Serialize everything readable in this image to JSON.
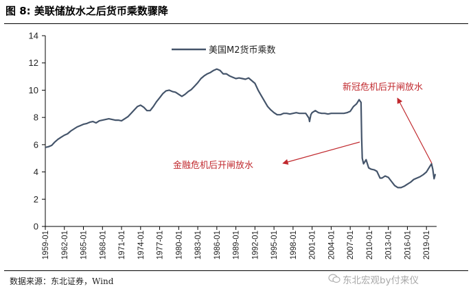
{
  "figure": {
    "title": "图  8:  美联储放水之后货币乘数骤降",
    "source": "数据来源：东北证券，Wind",
    "watermark": "东北宏观by付来仪"
  },
  "chart_data": {
    "type": "line",
    "ylim": [
      0,
      14
    ],
    "yticks": [
      0,
      2,
      4,
      6,
      8,
      10,
      12,
      14
    ],
    "xlim": [
      1959.0,
      2020.6
    ],
    "xtick_labels": [
      "1959-01",
      "1962-01",
      "1965-01",
      "1968-01",
      "1971-01",
      "1974-01",
      "1977-01",
      "1980-01",
      "1983-01",
      "1986-01",
      "1989-01",
      "1992-01",
      "1995-01",
      "1998-01",
      "2001-01",
      "2004-01",
      "2007-01",
      "2010-01",
      "2013-01",
      "2016-01",
      "2019-01"
    ],
    "grid": false,
    "legend_position": "top-center",
    "series": [
      {
        "name": "美国M2货币乘数",
        "color": "#44546a",
        "points": [
          [
            1959.0,
            5.8
          ],
          [
            1959.5,
            5.85
          ],
          [
            1960.0,
            5.95
          ],
          [
            1960.5,
            6.2
          ],
          [
            1961.0,
            6.4
          ],
          [
            1961.5,
            6.55
          ],
          [
            1962.0,
            6.7
          ],
          [
            1962.5,
            6.8
          ],
          [
            1963.0,
            7.0
          ],
          [
            1963.5,
            7.15
          ],
          [
            1964.0,
            7.3
          ],
          [
            1964.5,
            7.4
          ],
          [
            1965.0,
            7.5
          ],
          [
            1965.5,
            7.55
          ],
          [
            1966.0,
            7.65
          ],
          [
            1966.5,
            7.7
          ],
          [
            1967.0,
            7.6
          ],
          [
            1967.5,
            7.75
          ],
          [
            1968.0,
            7.8
          ],
          [
            1968.5,
            7.85
          ],
          [
            1969.0,
            7.9
          ],
          [
            1969.5,
            7.85
          ],
          [
            1970.0,
            7.8
          ],
          [
            1970.5,
            7.8
          ],
          [
            1971.0,
            7.75
          ],
          [
            1971.5,
            7.9
          ],
          [
            1972.0,
            8.05
          ],
          [
            1972.5,
            8.3
          ],
          [
            1973.0,
            8.55
          ],
          [
            1973.5,
            8.8
          ],
          [
            1974.0,
            8.9
          ],
          [
            1974.5,
            8.75
          ],
          [
            1975.0,
            8.5
          ],
          [
            1975.5,
            8.5
          ],
          [
            1976.0,
            8.8
          ],
          [
            1976.5,
            9.15
          ],
          [
            1977.0,
            9.45
          ],
          [
            1977.5,
            9.75
          ],
          [
            1978.0,
            9.95
          ],
          [
            1978.5,
            10.0
          ],
          [
            1979.0,
            9.9
          ],
          [
            1979.5,
            9.85
          ],
          [
            1980.0,
            9.7
          ],
          [
            1980.5,
            9.55
          ],
          [
            1981.0,
            9.7
          ],
          [
            1981.5,
            9.9
          ],
          [
            1982.0,
            10.05
          ],
          [
            1982.5,
            10.3
          ],
          [
            1983.0,
            10.55
          ],
          [
            1983.5,
            10.85
          ],
          [
            1984.0,
            11.05
          ],
          [
            1984.5,
            11.2
          ],
          [
            1985.0,
            11.3
          ],
          [
            1985.5,
            11.45
          ],
          [
            1986.0,
            11.55
          ],
          [
            1986.5,
            11.45
          ],
          [
            1987.0,
            11.2
          ],
          [
            1987.5,
            11.2
          ],
          [
            1988.0,
            11.05
          ],
          [
            1988.5,
            10.95
          ],
          [
            1989.0,
            10.85
          ],
          [
            1989.5,
            10.9
          ],
          [
            1990.0,
            10.85
          ],
          [
            1990.5,
            10.8
          ],
          [
            1991.0,
            10.9
          ],
          [
            1991.5,
            10.7
          ],
          [
            1992.0,
            10.5
          ],
          [
            1992.5,
            10.0
          ],
          [
            1993.0,
            9.6
          ],
          [
            1993.5,
            9.2
          ],
          [
            1994.0,
            8.8
          ],
          [
            1994.5,
            8.55
          ],
          [
            1995.0,
            8.35
          ],
          [
            1995.5,
            8.2
          ],
          [
            1996.0,
            8.2
          ],
          [
            1996.5,
            8.3
          ],
          [
            1997.0,
            8.3
          ],
          [
            1997.5,
            8.25
          ],
          [
            1998.0,
            8.3
          ],
          [
            1998.5,
            8.35
          ],
          [
            1999.0,
            8.3
          ],
          [
            1999.5,
            8.3
          ],
          [
            2000.0,
            8.3
          ],
          [
            2000.5,
            7.95
          ],
          [
            2000.6,
            7.7
          ],
          [
            2000.8,
            8.2
          ],
          [
            2001.0,
            8.35
          ],
          [
            2001.5,
            8.5
          ],
          [
            2002.0,
            8.35
          ],
          [
            2002.5,
            8.3
          ],
          [
            2003.0,
            8.3
          ],
          [
            2003.5,
            8.25
          ],
          [
            2004.0,
            8.3
          ],
          [
            2004.5,
            8.3
          ],
          [
            2005.0,
            8.3
          ],
          [
            2005.5,
            8.3
          ],
          [
            2006.0,
            8.3
          ],
          [
            2006.5,
            8.35
          ],
          [
            2007.0,
            8.45
          ],
          [
            2007.5,
            8.8
          ],
          [
            2008.0,
            9.0
          ],
          [
            2008.4,
            9.3
          ],
          [
            2008.7,
            9.1
          ],
          [
            2008.8,
            6.5
          ],
          [
            2008.9,
            5.0
          ],
          [
            2009.1,
            4.6
          ],
          [
            2009.5,
            4.9
          ],
          [
            2009.9,
            4.3
          ],
          [
            2010.3,
            4.2
          ],
          [
            2010.8,
            4.15
          ],
          [
            2011.2,
            4.05
          ],
          [
            2011.7,
            3.55
          ],
          [
            2012.0,
            3.55
          ],
          [
            2012.5,
            3.7
          ],
          [
            2013.0,
            3.6
          ],
          [
            2013.5,
            3.3
          ],
          [
            2014.0,
            3.0
          ],
          [
            2014.5,
            2.85
          ],
          [
            2015.0,
            2.85
          ],
          [
            2015.5,
            2.95
          ],
          [
            2016.0,
            3.1
          ],
          [
            2016.5,
            3.25
          ],
          [
            2017.0,
            3.45
          ],
          [
            2017.5,
            3.55
          ],
          [
            2018.0,
            3.65
          ],
          [
            2018.5,
            3.8
          ],
          [
            2019.0,
            4.0
          ],
          [
            2019.4,
            4.3
          ],
          [
            2019.8,
            4.6
          ],
          [
            2020.0,
            4.2
          ],
          [
            2020.2,
            3.5
          ],
          [
            2020.4,
            3.85
          ]
        ]
      }
    ],
    "annotations": [
      {
        "text": "新冠危机后开闸放水",
        "target_x": 2020.0,
        "target_y": 4.4
      },
      {
        "text": "金融危机后开闸放水",
        "target_x": 2008.8,
        "target_y": 6.2
      }
    ]
  }
}
